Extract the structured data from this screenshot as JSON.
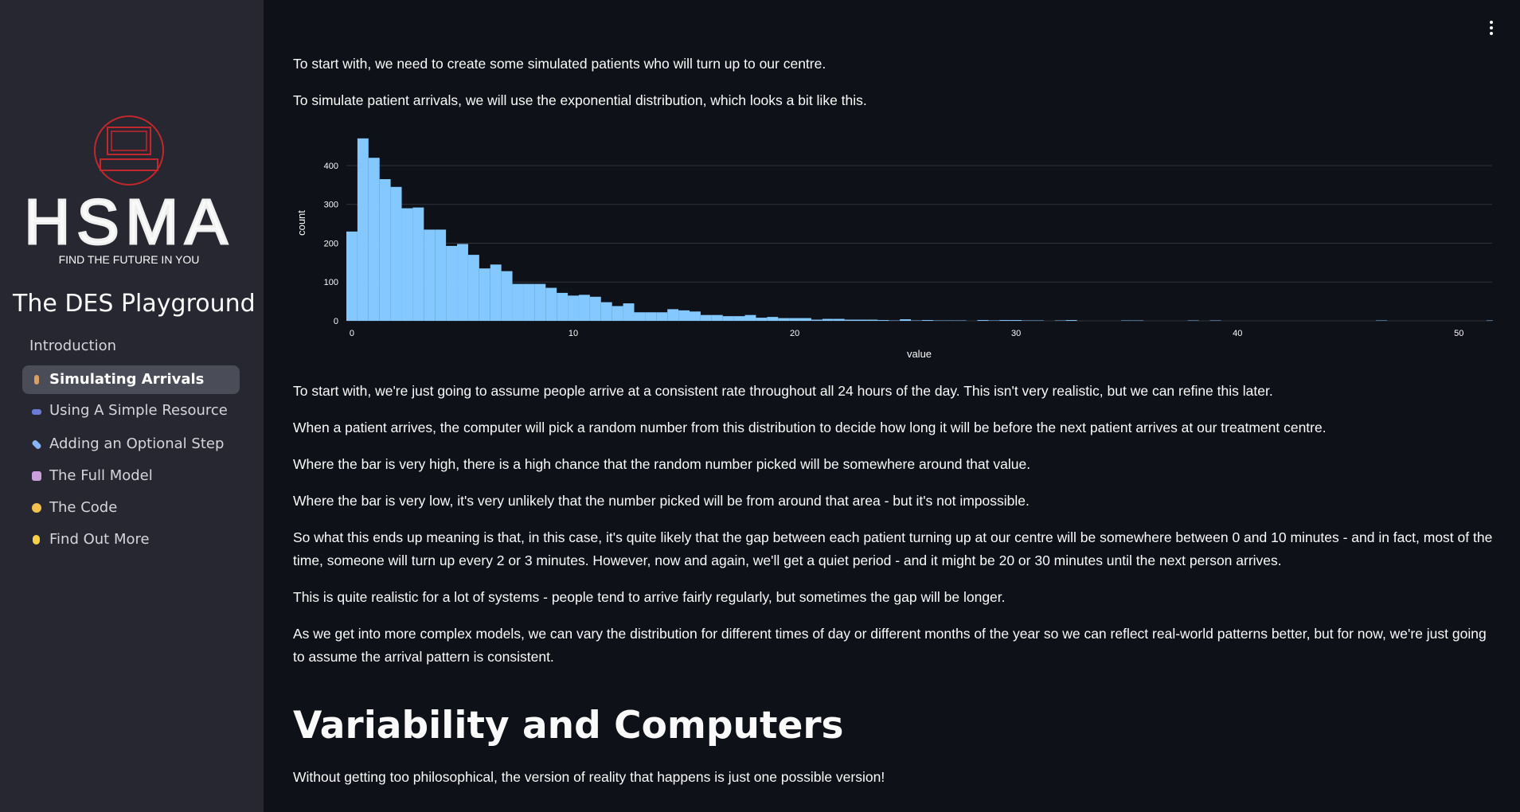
{
  "sidebar": {
    "logo_text": "HSMA",
    "logo_tagline": "FIND THE FUTURE IN YOU",
    "title": "The DES Playground",
    "nav": [
      "Introduction",
      "Simulating Arrivals",
      "Using A Simple Resource",
      "Adding an Optional Step",
      "The Full Model",
      "The Code",
      "Find Out More"
    ]
  },
  "content": {
    "intro": [
      "To start with, we need to create some simulated patients who will turn up to our centre.",
      "To simulate patient arrivals, we will use the exponential distribution, which looks a bit like this."
    ],
    "paragraphs": [
      "To start with, we're just going to assume people arrive at a consistent rate throughout all 24 hours of the day. This isn't very realistic, but we can refine this later.",
      "When a patient arrives, the computer will pick a random number from this distribution to decide how long it will be before the next patient arrives at our treatment centre.",
      "Where the bar is very high, there is a high chance that the random number picked will be somewhere around that value.",
      "Where the bar is very low, it's very unlikely that the number picked will be from around that area - but it's not impossible.",
      "So what this ends up meaning is that, in this case, it's quite likely that the gap between each patient turning up at our centre will be somewhere between 0 and 10 minutes - and in fact, most of the time, someone will turn up every 2 or 3 minutes. However, now and again, we'll get a quiet period - and it might be 20 or 30 minutes until the next person arrives.",
      "This is quite realistic for a lot of systems - people tend to arrive fairly regularly, but sometimes the gap will be longer.",
      "As we get into more complex models, we can vary the distribution for different times of day or different months of the year so we can reflect real-world patterns better, but for now, we're just going to assume the arrival pattern is consistent."
    ],
    "heading": "Variability and Computers",
    "after_heading": [
      "Without getting too philosophical, the version of reality that happens is just one possible version!"
    ]
  },
  "chart_data": {
    "type": "histogram",
    "xlabel": "value",
    "ylabel": "count",
    "color": "#83c9ff",
    "grid": true,
    "bins": [
      -0.25,
      0.25,
      0.75,
      1.25,
      1.75,
      2.25,
      2.75,
      3.25,
      3.75,
      4.25,
      4.75,
      5.25,
      5.75,
      6.25,
      6.75,
      7.25,
      7.75,
      8.25,
      8.75,
      9.25,
      9.75,
      10.25,
      10.75,
      11.25,
      11.75,
      12.25,
      12.75,
      13.25,
      13.75,
      14.25,
      14.75,
      15.25,
      15.75,
      16.25,
      16.75,
      17.25,
      17.75,
      18.25,
      18.75,
      19.25,
      19.75,
      20.25,
      20.75,
      21.25,
      21.75,
      22.25,
      22.75,
      23.25,
      23.75,
      24.25,
      24.75,
      25.25,
      25.75,
      26.25,
      26.75,
      27.25,
      27.75,
      28.25,
      28.75,
      29.25,
      29.75,
      30.25,
      30.75,
      31.25,
      31.75,
      32.25,
      32.75,
      33.25,
      33.75,
      34.25,
      34.75,
      35.25,
      35.75,
      36.25,
      36.75,
      37.25,
      37.75,
      38.25,
      38.75,
      39.25,
      39.75,
      40.25,
      40.75,
      41.25,
      41.75,
      42.25,
      42.75,
      43.25,
      43.75,
      44.25,
      44.75,
      45.25,
      45.75,
      46.25,
      46.75,
      47.25,
      47.75,
      48.25,
      48.75,
      49.25,
      49.75,
      50.25,
      50.75,
      51.25,
      51.75
    ],
    "values": [
      230,
      470,
      420,
      365,
      345,
      290,
      292,
      235,
      235,
      193,
      198,
      170,
      135,
      145,
      128,
      95,
      95,
      95,
      85,
      72,
      65,
      67,
      62,
      48,
      38,
      45,
      22,
      22,
      22,
      30,
      27,
      24,
      15,
      15,
      12,
      12,
      15,
      8,
      10,
      7,
      7,
      7,
      3,
      5,
      5,
      3,
      3,
      3,
      2,
      1,
      4,
      1,
      2,
      1,
      1,
      1,
      0,
      2,
      1,
      2,
      2,
      1,
      1,
      0,
      1,
      2,
      0,
      0,
      0,
      0,
      1,
      1,
      0,
      0,
      0,
      0,
      1,
      0,
      1,
      0,
      0,
      0,
      0,
      0,
      0,
      0,
      0,
      0,
      0,
      0,
      0,
      0,
      0,
      1,
      0,
      0,
      0,
      0,
      0,
      0,
      0,
      0,
      0,
      1
    ],
    "xlim": [
      -0.25,
      51.5
    ],
    "ylim": [
      0,
      475
    ],
    "xticks": [
      0,
      10,
      20,
      30,
      40,
      50
    ],
    "yticks": [
      0,
      100,
      200,
      300,
      400
    ]
  }
}
